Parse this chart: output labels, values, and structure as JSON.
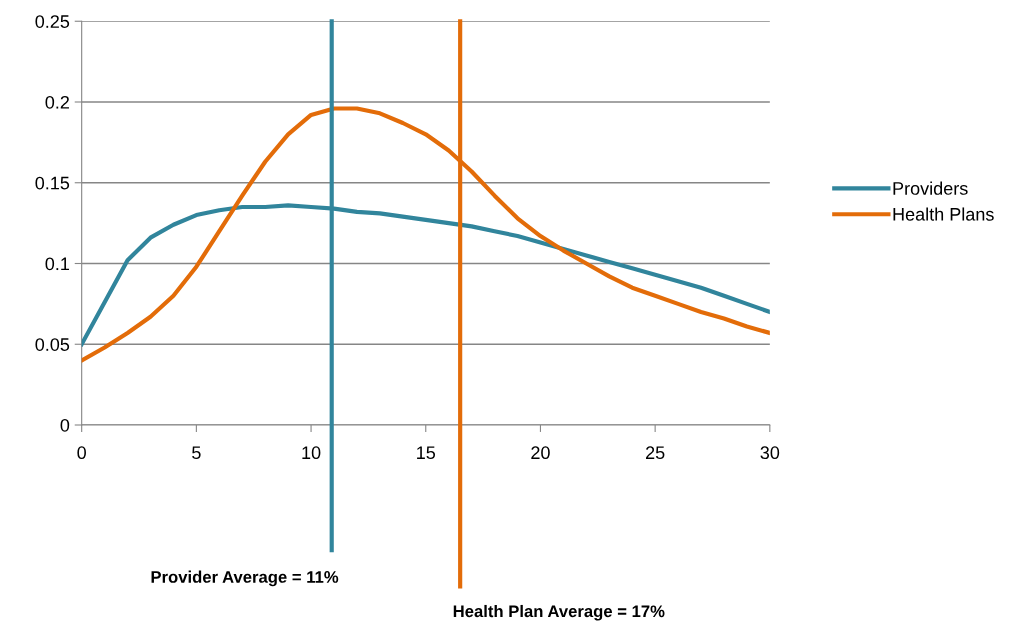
{
  "chart_data": {
    "type": "line",
    "x": [
      0,
      1,
      2,
      3,
      4,
      5,
      6,
      7,
      8,
      9,
      10,
      11,
      12,
      13,
      14,
      15,
      16,
      17,
      18,
      19,
      20,
      21,
      22,
      23,
      24,
      25,
      26,
      27,
      28,
      29,
      30
    ],
    "series": [
      {
        "name": "Providers",
        "color": "#31859c",
        "values": [
          0.05,
          0.076,
          0.102,
          0.116,
          0.124,
          0.13,
          0.133,
          0.135,
          0.135,
          0.136,
          0.135,
          0.134,
          0.132,
          0.131,
          0.129,
          0.127,
          0.125,
          0.123,
          0.12,
          0.117,
          0.113,
          0.109,
          0.105,
          0.101,
          0.097,
          0.093,
          0.089,
          0.085,
          0.08,
          0.075,
          0.07
        ]
      },
      {
        "name": "Health Plans",
        "color": "#e36c09",
        "values": [
          0.04,
          0.048,
          0.057,
          0.067,
          0.08,
          0.098,
          0.12,
          0.142,
          0.163,
          0.18,
          0.192,
          0.196,
          0.196,
          0.193,
          0.187,
          0.18,
          0.17,
          0.157,
          0.142,
          0.128,
          0.117,
          0.108,
          0.1,
          0.092,
          0.085,
          0.08,
          0.075,
          0.07,
          0.066,
          0.061,
          0.057
        ]
      }
    ],
    "xlim": [
      0,
      30
    ],
    "xticks": [
      0,
      5,
      10,
      15,
      20,
      25,
      30
    ],
    "ylim": [
      0,
      0.25
    ],
    "yticks": [
      0,
      0.05,
      0.1,
      0.15,
      0.2,
      0.25
    ],
    "grid": "y",
    "legend": "right",
    "line_style": "solid",
    "marker": "none",
    "ref_lines": [
      {
        "axis": "x",
        "value": 10.9,
        "label": "Provider Average = 11%",
        "color": "#31859c"
      },
      {
        "axis": "x",
        "value": 16.5,
        "label": "Health Plan Average = 17%",
        "color": "#e36c09"
      }
    ]
  }
}
